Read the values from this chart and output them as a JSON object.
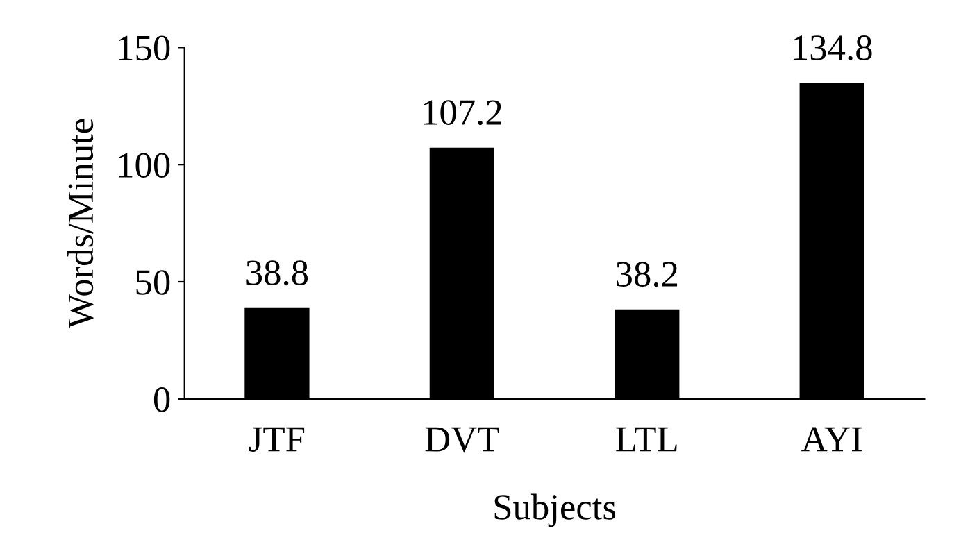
{
  "chart_data": {
    "type": "bar",
    "xlabel": "Subjects",
    "ylabel": "Words/Minute",
    "categories": [
      "JTF",
      "DVT",
      "LTL",
      "AYI"
    ],
    "values": [
      38.8,
      107.2,
      38.2,
      134.8
    ],
    "color": "#000000",
    "ylim": [
      0,
      150
    ],
    "yticks": [
      0,
      50,
      100,
      150
    ],
    "grid": false,
    "data_labels": true
  }
}
